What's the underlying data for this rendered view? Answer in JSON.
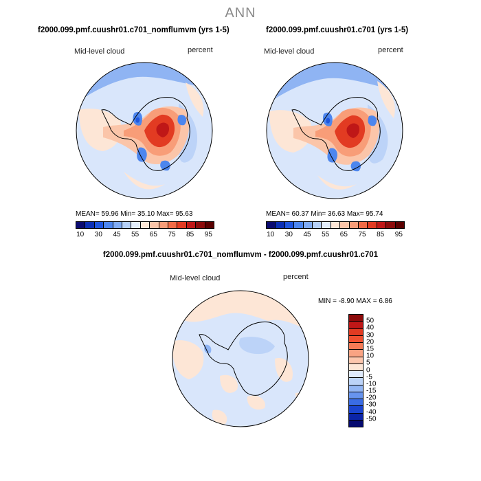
{
  "figure": {
    "season": "ANN"
  },
  "panel_left": {
    "title": "f2000.099.pmf.cuushr01.c701_nomflumvm (yrs 1-5)",
    "variable": "Mid-level cloud",
    "units": "percent",
    "stats": "MEAN=  59.96  Min=  35.10  Max=  95.63"
  },
  "panel_right": {
    "title": "f2000.099.pmf.cuushr01.c701 (yrs 1-5)",
    "variable": "Mid-level cloud",
    "units": "percent",
    "stats": "MEAN=  60.37  Min=  36.63  Max=  95.74"
  },
  "panel_diff": {
    "title": "f2000.099.pmf.cuushr01.c701_nomflumvm - f2000.099.pmf.cuushr01.c701",
    "variable": "Mid-level cloud",
    "units": "percent",
    "stats": "MIN =  -8.90 MAX =   6.86"
  },
  "colorbar_main": {
    "labels": [
      "10",
      "30",
      "45",
      "55",
      "65",
      "75",
      "85",
      "95"
    ],
    "colors": [
      "#0a0a70",
      "#0b2fb5",
      "#1f56df",
      "#4d86ee",
      "#80abf4",
      "#b5d0f8",
      "#e3eefc",
      "#fde6d6",
      "#fbc5a9",
      "#f89d78",
      "#f26b46",
      "#e23b22",
      "#bf1717",
      "#8c0b0b",
      "#5a0000"
    ]
  },
  "colorbar_diff": {
    "labels": [
      "50",
      "40",
      "30",
      "20",
      "15",
      "10",
      "5",
      "0",
      "-5",
      "-10",
      "-15",
      "-20",
      "-30",
      "-40",
      "-50"
    ],
    "colors": [
      "#8c0b0b",
      "#bf1717",
      "#e23b22",
      "#f05030",
      "#f57a55",
      "#f9a383",
      "#fcc6ad",
      "#fde6d6",
      "#dfeafc",
      "#bcd3f8",
      "#93b6f4",
      "#6794ee",
      "#3a6ce4",
      "#1a44cf",
      "#0b24a8",
      "#050a70"
    ]
  },
  "map_colors": {
    "ocean_light": "#d9e6fb",
    "ocean_mid": "#bcd3f8",
    "ocean_blue": "#8fb4f3",
    "warm_light": "#fde6d6",
    "warm_mid": "#fbc5a9",
    "warm_orange": "#f89d78",
    "warm_red": "#e23b22",
    "warm_dark": "#bf1717",
    "cold_blue": "#4d86ee",
    "cold_dark": "#1f56df",
    "coast": "#000000"
  }
}
